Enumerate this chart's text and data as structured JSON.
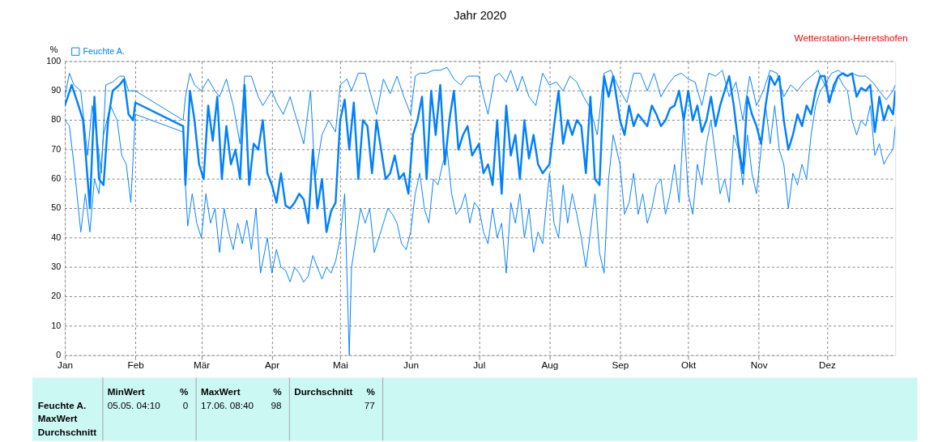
{
  "chart_data": {
    "type": "line",
    "title": "Jahr 2020",
    "ylabel": "%",
    "annotations": [
      "Wetterstation-Herretshofen",
      "Feuchte A.",
      "MaxWert",
      "Durchschnitt",
      "MinWert",
      "%",
      "05.05.  04:10",
      "0",
      "MaxWert",
      "%",
      "17.06.  08:40",
      "98",
      "Durchschnitt",
      "%",
      "77"
    ],
    "xlim": [
      "2020-01-01",
      "2020-12-31"
    ],
    "xticks": [
      {
        "value": "2020-01-01",
        "label": "Jan"
      },
      {
        "value": "2020-02-01",
        "label": "Feb"
      },
      {
        "value": "2020-03-01",
        "label": "Mär"
      },
      {
        "value": "2020-04-01",
        "label": "Apr"
      },
      {
        "value": "2020-05-01",
        "label": "Mai"
      },
      {
        "value": "2020-06-01",
        "label": "Jun"
      },
      {
        "value": "2020-07-01",
        "label": "Jul"
      },
      {
        "value": "2020-08-01",
        "label": "Aug"
      },
      {
        "value": "2020-09-01",
        "label": "Sep"
      },
      {
        "value": "2020-10-01",
        "label": "Okt"
      },
      {
        "value": "2020-11-01",
        "label": "Nov"
      },
      {
        "value": "2020-12-01",
        "label": "Dez"
      }
    ],
    "ylim": [
      0,
      100
    ],
    "yticks": [
      0,
      10,
      20,
      30,
      40,
      50,
      60,
      70,
      80,
      90,
      100
    ],
    "grid": true,
    "legend": "top left",
    "line_style": "solid",
    "marker": "none",
    "series": [
      {
        "color": "#0080ff",
        "x": [
          "2020-01-01",
          "2020-01-03",
          "2020-01-05",
          "2020-01-08",
          "2020-01-11",
          "2020-01-13",
          "2020-01-15",
          "2020-01-17",
          "2020-01-19",
          "2020-01-22",
          "2020-01-25",
          "2020-01-27",
          "2020-01-29",
          "2020-02-01",
          "2020-02-22",
          "2020-02-23",
          "2020-02-25",
          "2020-02-27",
          "2020-03-01",
          "2020-03-04",
          "2020-03-07",
          "2020-03-09",
          "2020-03-12",
          "2020-03-15",
          "2020-03-18",
          "2020-03-20",
          "2020-03-23",
          "2020-03-26",
          "2020-03-28",
          "2020-04-01",
          "2020-04-03",
          "2020-04-06",
          "2020-04-09",
          "2020-04-12",
          "2020-04-15",
          "2020-04-18",
          "2020-04-20",
          "2020-04-23",
          "2020-04-26",
          "2020-04-29",
          "2020-05-01",
          "2020-05-04",
          "2020-05-06",
          "2020-05-09",
          "2020-05-12",
          "2020-05-14",
          "2020-05-17",
          "2020-05-20",
          "2020-05-23",
          "2020-05-26",
          "2020-05-29",
          "2020-06-01",
          "2020-06-03",
          "2020-06-05",
          "2020-06-08",
          "2020-06-11",
          "2020-06-14",
          "2020-06-17",
          "2020-06-20",
          "2020-06-23",
          "2020-06-26",
          "2020-07-01",
          "2020-07-03",
          "2020-07-05",
          "2020-07-08",
          "2020-07-10",
          "2020-07-13",
          "2020-07-15",
          "2020-07-18",
          "2020-07-20",
          "2020-07-23",
          "2020-07-26",
          "2020-07-29",
          "2020-08-01",
          "2020-08-04",
          "2020-08-07",
          "2020-08-10",
          "2020-08-13",
          "2020-08-16",
          "2020-08-19",
          "2020-08-22",
          "2020-08-25",
          "2020-08-28",
          "2020-09-01",
          "2020-09-04",
          "2020-09-07",
          "2020-09-10",
          "2020-09-13",
          "2020-09-16",
          "2020-09-19",
          "2020-09-22",
          "2020-09-25",
          "2020-09-28",
          "2020-10-01",
          "2020-10-04",
          "2020-10-07",
          "2020-10-10",
          "2020-10-13",
          "2020-10-16",
          "2020-10-19",
          "2020-10-22",
          "2020-10-25",
          "2020-10-28",
          "2020-10-31",
          "2020-11-03",
          "2020-11-06",
          "2020-11-09",
          "2020-11-12",
          "2020-11-15",
          "2020-11-18",
          "2020-11-21",
          "2020-11-24",
          "2020-11-27",
          "2020-11-30",
          "2020-12-03",
          "2020-12-06",
          "2020-12-09",
          "2020-12-12",
          "2020-12-15",
          "2020-12-18",
          "2020-12-21",
          "2020-12-24",
          "2020-12-27",
          "2020-12-30",
          "2020-12-31"
        ],
        "values": [
          88,
          96,
          92,
          90,
          68,
          85,
          75,
          62,
          92,
          93,
          95,
          95,
          90,
          90,
          80,
          88,
          96,
          92,
          90,
          94,
          90,
          88,
          94,
          85,
          72,
          95,
          95,
          88,
          85,
          90,
          86,
          82,
          88,
          80,
          72,
          90,
          60,
          75,
          80,
          76,
          92,
          94,
          90,
          96,
          96,
          90,
          82,
          94,
          89,
          95,
          88,
          82,
          95,
          96,
          96,
          97,
          97,
          98,
          94,
          92,
          95,
          95,
          88,
          82,
          95,
          96,
          93,
          97,
          90,
          95,
          88,
          85,
          96,
          92,
          93,
          90,
          95,
          93,
          88,
          84,
          75,
          96,
          97,
          90,
          86,
          96,
          96,
          90,
          96,
          88,
          92,
          95,
          96,
          94,
          93,
          85,
          96,
          95,
          97,
          88,
          93,
          80,
          95,
          85,
          90,
          97,
          96,
          88,
          92,
          90,
          93,
          95,
          97,
          92,
          96,
          97,
          95,
          96,
          95,
          95,
          93,
          90,
          87,
          90,
          92
        ]
      },
      {
        "color": "#0080ff",
        "x": [
          "2020-01-01",
          "2020-01-03",
          "2020-01-05",
          "2020-01-08",
          "2020-01-10",
          "2020-01-12",
          "2020-01-14",
          "2020-01-16",
          "2020-01-18",
          "2020-01-21",
          "2020-01-24",
          "2020-01-26",
          "2020-01-28",
          "2020-01-30",
          "2020-02-01",
          "2020-02-22",
          "2020-02-23",
          "2020-02-24",
          "2020-02-26",
          "2020-02-28",
          "2020-03-01",
          "2020-03-03",
          "2020-03-05",
          "2020-03-07",
          "2020-03-09",
          "2020-03-11",
          "2020-03-13",
          "2020-03-15",
          "2020-03-17",
          "2020-03-19",
          "2020-03-21",
          "2020-03-23",
          "2020-03-25",
          "2020-03-27",
          "2020-03-30",
          "2020-04-01",
          "2020-04-03",
          "2020-04-05",
          "2020-04-07",
          "2020-04-09",
          "2020-04-11",
          "2020-04-13",
          "2020-04-15",
          "2020-04-17",
          "2020-04-19",
          "2020-04-21",
          "2020-04-23",
          "2020-04-25",
          "2020-04-27",
          "2020-04-29",
          "2020-05-01",
          "2020-05-03",
          "2020-05-05",
          "2020-05-06",
          "2020-05-08",
          "2020-05-10",
          "2020-05-12",
          "2020-05-14",
          "2020-05-16",
          "2020-05-18",
          "2020-05-20",
          "2020-05-22",
          "2020-05-24",
          "2020-05-26",
          "2020-05-28",
          "2020-05-30",
          "2020-06-01",
          "2020-06-03",
          "2020-06-05",
          "2020-06-07",
          "2020-06-09",
          "2020-06-11",
          "2020-06-13",
          "2020-06-15",
          "2020-06-17",
          "2020-06-19",
          "2020-06-21",
          "2020-06-23",
          "2020-06-25",
          "2020-06-27",
          "2020-06-29",
          "2020-07-01",
          "2020-07-03",
          "2020-07-05",
          "2020-07-07",
          "2020-07-09",
          "2020-07-11",
          "2020-07-13",
          "2020-07-15",
          "2020-07-17",
          "2020-07-19",
          "2020-07-21",
          "2020-07-23",
          "2020-07-25",
          "2020-07-27",
          "2020-07-29",
          "2020-08-01",
          "2020-08-03",
          "2020-08-05",
          "2020-08-07",
          "2020-08-09",
          "2020-08-11",
          "2020-08-13",
          "2020-08-15",
          "2020-08-17",
          "2020-08-19",
          "2020-08-21",
          "2020-08-23",
          "2020-08-25",
          "2020-08-27",
          "2020-08-29",
          "2020-09-01",
          "2020-09-03",
          "2020-09-05",
          "2020-09-07",
          "2020-09-09",
          "2020-09-11",
          "2020-09-13",
          "2020-09-15",
          "2020-09-17",
          "2020-09-19",
          "2020-09-21",
          "2020-09-23",
          "2020-09-25",
          "2020-09-27",
          "2020-09-29",
          "2020-10-01",
          "2020-10-03",
          "2020-10-05",
          "2020-10-07",
          "2020-10-09",
          "2020-10-11",
          "2020-10-13",
          "2020-10-15",
          "2020-10-17",
          "2020-10-19",
          "2020-10-21",
          "2020-10-23",
          "2020-10-25",
          "2020-10-27",
          "2020-10-29",
          "2020-10-31",
          "2020-11-02",
          "2020-11-04",
          "2020-11-06",
          "2020-11-08",
          "2020-11-10",
          "2020-11-12",
          "2020-11-14",
          "2020-11-16",
          "2020-11-18",
          "2020-11-20",
          "2020-11-22",
          "2020-11-24",
          "2020-11-26",
          "2020-11-28",
          "2020-11-30",
          "2020-12-02",
          "2020-12-04",
          "2020-12-06",
          "2020-12-08",
          "2020-12-10",
          "2020-12-12",
          "2020-12-14",
          "2020-12-16",
          "2020-12-18",
          "2020-12-20",
          "2020-12-22",
          "2020-12-24",
          "2020-12-26",
          "2020-12-28",
          "2020-12-30",
          "2020-12-31"
        ],
        "values": [
          80,
          78,
          65,
          42,
          55,
          42,
          60,
          55,
          75,
          85,
          80,
          68,
          65,
          52,
          82,
          76,
          58,
          44,
          55,
          45,
          40,
          55,
          45,
          50,
          35,
          50,
          42,
          36,
          45,
          38,
          46,
          36,
          50,
          28,
          40,
          28,
          36,
          30,
          29,
          25,
          30,
          28,
          25,
          27,
          34,
          30,
          26,
          30,
          28,
          32,
          40,
          55,
          0,
          30,
          40,
          50,
          45,
          50,
          35,
          40,
          45,
          50,
          48,
          45,
          38,
          36,
          42,
          55,
          62,
          50,
          45,
          60,
          58,
          65,
          70,
          55,
          48,
          50,
          55,
          45,
          52,
          50,
          42,
          38,
          50,
          40,
          45,
          28,
          52,
          45,
          55,
          40,
          50,
          35,
          42,
          38,
          62,
          45,
          40,
          58,
          45,
          55,
          48,
          40,
          30,
          42,
          55,
          35,
          28,
          60,
          75,
          65,
          48,
          52,
          62,
          48,
          55,
          45,
          50,
          58,
          60,
          48,
          55,
          65,
          52,
          80,
          55,
          48,
          65,
          58,
          72,
          80,
          68,
          55,
          60,
          52,
          75,
          70,
          58,
          75,
          62,
          55,
          70,
          85,
          72,
          85,
          70,
          65,
          50,
          62,
          58,
          65,
          60,
          75,
          85,
          90,
          92,
          88,
          90,
          95,
          92,
          90,
          80,
          75,
          80,
          78,
          85,
          68,
          72,
          65,
          68,
          70,
          78
        ]
      },
      {
        "name": "Feuchte A.",
        "color": "#0080ff",
        "x": [
          "2020-01-01",
          "2020-01-04",
          "2020-01-07",
          "2020-01-09",
          "2020-01-12",
          "2020-01-14",
          "2020-01-16",
          "2020-01-18",
          "2020-01-20",
          "2020-01-22",
          "2020-01-25",
          "2020-01-27",
          "2020-01-29",
          "2020-01-31",
          "2020-02-01",
          "2020-02-22",
          "2020-02-23",
          "2020-02-25",
          "2020-02-27",
          "2020-02-29",
          "2020-03-02",
          "2020-03-04",
          "2020-03-06",
          "2020-03-08",
          "2020-03-10",
          "2020-03-12",
          "2020-03-14",
          "2020-03-16",
          "2020-03-18",
          "2020-03-20",
          "2020-03-22",
          "2020-03-24",
          "2020-03-26",
          "2020-03-28",
          "2020-03-30",
          "2020-04-01",
          "2020-04-03",
          "2020-04-05",
          "2020-04-07",
          "2020-04-09",
          "2020-04-11",
          "2020-04-13",
          "2020-04-15",
          "2020-04-17",
          "2020-04-19",
          "2020-04-21",
          "2020-04-23",
          "2020-04-25",
          "2020-04-27",
          "2020-04-29",
          "2020-05-01",
          "2020-05-03",
          "2020-05-05",
          "2020-05-07",
          "2020-05-09",
          "2020-05-11",
          "2020-05-13",
          "2020-05-15",
          "2020-05-17",
          "2020-05-19",
          "2020-05-21",
          "2020-05-23",
          "2020-05-25",
          "2020-05-27",
          "2020-05-29",
          "2020-05-31",
          "2020-06-02",
          "2020-06-04",
          "2020-06-06",
          "2020-06-08",
          "2020-06-10",
          "2020-06-12",
          "2020-06-14",
          "2020-06-16",
          "2020-06-18",
          "2020-06-20",
          "2020-06-22",
          "2020-06-24",
          "2020-06-26",
          "2020-06-28",
          "2020-07-01",
          "2020-07-03",
          "2020-07-05",
          "2020-07-07",
          "2020-07-09",
          "2020-07-11",
          "2020-07-13",
          "2020-07-15",
          "2020-07-17",
          "2020-07-19",
          "2020-07-21",
          "2020-07-23",
          "2020-07-25",
          "2020-07-27",
          "2020-07-29",
          "2020-08-01",
          "2020-08-03",
          "2020-08-05",
          "2020-08-07",
          "2020-08-09",
          "2020-08-11",
          "2020-08-13",
          "2020-08-15",
          "2020-08-17",
          "2020-08-19",
          "2020-08-21",
          "2020-08-23",
          "2020-08-25",
          "2020-08-27",
          "2020-08-29",
          "2020-09-01",
          "2020-09-03",
          "2020-09-05",
          "2020-09-07",
          "2020-09-09",
          "2020-09-11",
          "2020-09-13",
          "2020-09-15",
          "2020-09-17",
          "2020-09-19",
          "2020-09-21",
          "2020-09-23",
          "2020-09-25",
          "2020-09-27",
          "2020-09-29",
          "2020-10-01",
          "2020-10-03",
          "2020-10-05",
          "2020-10-07",
          "2020-10-09",
          "2020-10-11",
          "2020-10-13",
          "2020-10-15",
          "2020-10-17",
          "2020-10-19",
          "2020-10-21",
          "2020-10-23",
          "2020-10-25",
          "2020-10-27",
          "2020-10-29",
          "2020-10-31",
          "2020-11-02",
          "2020-11-04",
          "2020-11-06",
          "2020-11-08",
          "2020-11-10",
          "2020-11-12",
          "2020-11-14",
          "2020-11-16",
          "2020-11-18",
          "2020-11-20",
          "2020-11-22",
          "2020-11-24",
          "2020-11-26",
          "2020-11-28",
          "2020-11-30",
          "2020-12-02",
          "2020-12-04",
          "2020-12-06",
          "2020-12-08",
          "2020-12-10",
          "2020-12-12",
          "2020-12-14",
          "2020-12-16",
          "2020-12-18",
          "2020-12-20",
          "2020-12-22",
          "2020-12-24",
          "2020-12-26",
          "2020-12-28",
          "2020-12-30",
          "2020-12-31"
        ],
        "values": [
          85,
          92,
          85,
          80,
          50,
          88,
          60,
          58,
          80,
          90,
          92,
          94,
          82,
          80,
          86,
          78,
          58,
          90,
          80,
          65,
          60,
          85,
          73,
          88,
          60,
          78,
          65,
          70,
          60,
          92,
          58,
          72,
          70,
          80,
          62,
          58,
          52,
          62,
          51,
          50,
          52,
          55,
          53,
          45,
          70,
          50,
          60,
          42,
          49,
          52,
          80,
          87,
          70,
          86,
          60,
          80,
          78,
          62,
          80,
          70,
          60,
          62,
          68,
          60,
          62,
          55,
          75,
          80,
          88,
          60,
          90,
          75,
          92,
          65,
          80,
          90,
          70,
          75,
          78,
          68,
          72,
          62,
          65,
          58,
          80,
          55,
          85,
          68,
          75,
          60,
          80,
          67,
          75,
          65,
          62,
          65,
          78,
          90,
          72,
          80,
          75,
          80,
          78,
          62,
          88,
          60,
          58,
          95,
          88,
          95,
          80,
          75,
          85,
          78,
          82,
          80,
          78,
          85,
          82,
          78,
          80,
          84,
          85,
          90,
          80,
          90,
          80,
          85,
          76,
          80,
          88,
          78,
          85,
          90,
          95,
          85,
          72,
          62,
          88,
          82,
          78,
          72,
          85,
          95,
          92,
          95,
          80,
          70,
          75,
          82,
          78,
          85,
          82,
          90,
          95,
          95,
          86,
          92,
          95,
          96,
          95,
          96,
          88,
          91,
          90,
          92,
          76,
          88,
          80,
          85,
          82,
          90
        ]
      }
    ]
  }
}
